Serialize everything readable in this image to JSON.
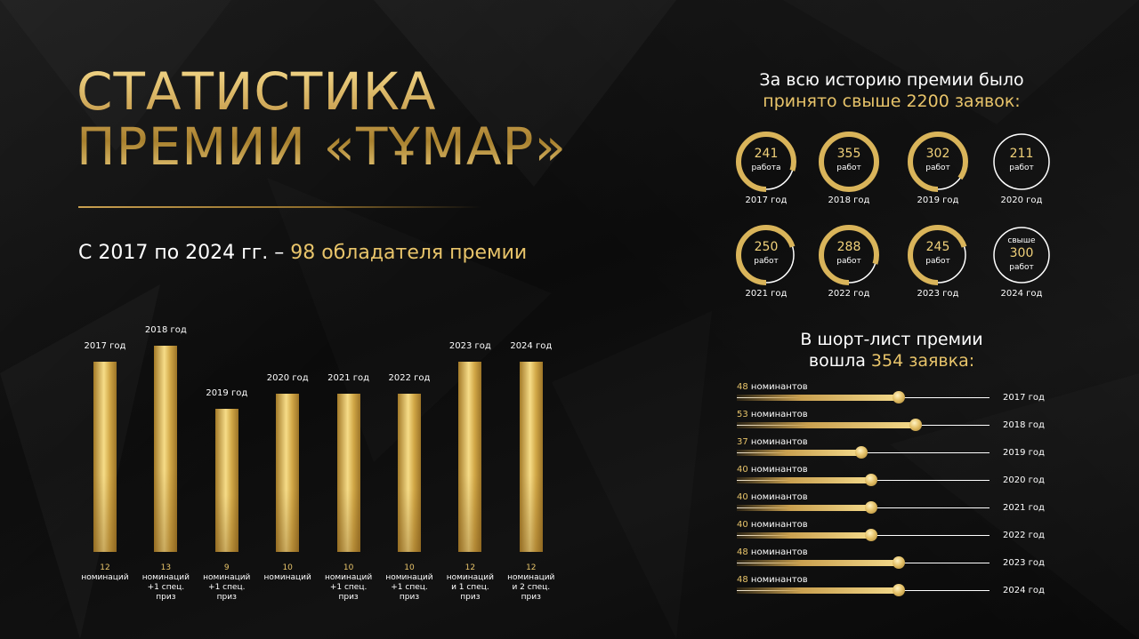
{
  "title": {
    "line1": "СТАТИСТИКА",
    "line2": "ПРЕМИИ «ТҰМАР»"
  },
  "subtitle": {
    "prefix": "С 2017 по 2024 гг. – ",
    "highlight": "98 обладателя премии"
  },
  "colors": {
    "gold": "#e8c46a",
    "background": "#0e0e0e",
    "text": "#ffffff"
  },
  "chart_data": [
    {
      "type": "bar",
      "categories": [
        "2017 год",
        "2018 год",
        "2019 год",
        "2020 год",
        "2021 год",
        "2022 год",
        "2023 год",
        "2024 год"
      ],
      "values": [
        12,
        13,
        9,
        10,
        10,
        10,
        12,
        12
      ],
      "value_labels": [
        "12",
        "13",
        "9",
        "10",
        "10",
        "10",
        "12",
        "12"
      ],
      "notes": [
        [
          "номинаций"
        ],
        [
          "номинаций",
          "+1 спец.",
          "приз"
        ],
        [
          "номинаций",
          "+1 спец.",
          "приз"
        ],
        [
          "номинаций"
        ],
        [
          "номинаций",
          "+1 спец.",
          "приз"
        ],
        [
          "номинаций",
          "+1 спец.",
          "приз"
        ],
        [
          "номинаций",
          "и 1 спец.",
          "приз"
        ],
        [
          "номинаций",
          "и 2 спец.",
          "приз"
        ]
      ],
      "ylim": [
        0,
        13
      ]
    },
    {
      "type": "pie",
      "title_line1": "За всю историю премии было",
      "title_line2": "принято свыше 2200 заявок:",
      "items": [
        {
          "value": "241",
          "unit": "работа",
          "year": "2017 год",
          "fraction": 0.8
        },
        {
          "value": "355",
          "unit": "работ",
          "year": "2018 год",
          "fraction": 1.0
        },
        {
          "value": "302",
          "unit": "работ",
          "year": "2019 год",
          "fraction": 0.85
        },
        {
          "value": "211",
          "unit": "работ",
          "year": "2020 год",
          "fraction": 0.0
        },
        {
          "value": "250",
          "unit": "работ",
          "year": "2021 год",
          "fraction": 0.7
        },
        {
          "value": "288",
          "unit": "работ",
          "year": "2022 год",
          "fraction": 0.8
        },
        {
          "value": "245",
          "unit": "работ",
          "year": "2023 год",
          "fraction": 0.7
        },
        {
          "value": "300",
          "prefix": "свыше",
          "unit": "работ",
          "year": "2024 год",
          "fraction": 0.0
        }
      ]
    },
    {
      "type": "bar",
      "orientation": "horizontal",
      "title_line1": "В шорт-лист премии",
      "title_line2_prefix": "вошла ",
      "title_line2_highlight": "354 заявка:",
      "unit": "номинантов",
      "categories": [
        "2017 год",
        "2018 год",
        "2019 год",
        "2020 год",
        "2021 год",
        "2022 год",
        "2023 год",
        "2024 год"
      ],
      "values": [
        48,
        53,
        37,
        40,
        40,
        40,
        48,
        48
      ],
      "xlim": [
        0,
        75
      ]
    }
  ]
}
